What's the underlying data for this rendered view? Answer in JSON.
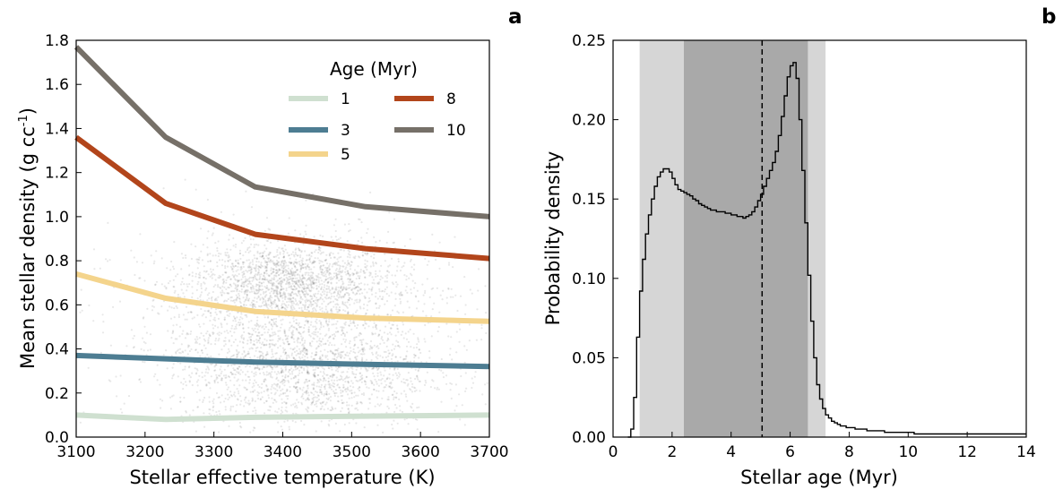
{
  "chart_data": [
    {
      "type": "line",
      "panel_label": "a",
      "xlabel": "Stellar effective temperature (K)",
      "ylabel": "Mean stellar density (g cc",
      "ylabel_sup": "-1",
      "ylabel_close": ")",
      "xlim": [
        3100,
        3700
      ],
      "ylim": [
        0.0,
        1.8
      ],
      "xticks": [
        "3100",
        "3200",
        "3300",
        "3400",
        "3500",
        "3600",
        "3700"
      ],
      "yticks": [
        "0.0",
        "0.2",
        "0.4",
        "0.6",
        "0.8",
        "1.0",
        "1.2",
        "1.4",
        "1.6",
        "1.8"
      ],
      "grid": false,
      "legend": {
        "title": "Age (Myr)",
        "placement": "top-right",
        "entries": [
          "1",
          "3",
          "5",
          "8",
          "10"
        ]
      },
      "x": [
        3100,
        3230,
        3360,
        3520,
        3700
      ],
      "series": [
        {
          "name": "1",
          "color": "#cfe0d0",
          "values": [
            0.1,
            0.08,
            0.09,
            0.095,
            0.1
          ]
        },
        {
          "name": "3",
          "color": "#4d7d92",
          "values": [
            0.37,
            0.355,
            0.34,
            0.33,
            0.32
          ]
        },
        {
          "name": "5",
          "color": "#f4d48c",
          "values": [
            0.74,
            0.63,
            0.57,
            0.54,
            0.525
          ]
        },
        {
          "name": "8",
          "color": "#b2451b",
          "values": [
            1.36,
            1.06,
            0.92,
            0.855,
            0.81
          ]
        },
        {
          "name": "10",
          "color": "#767068",
          "values": [
            1.77,
            1.36,
            1.135,
            1.045,
            1.0
          ]
        }
      ],
      "density_cloud": {
        "note_color": "#000000",
        "clusters": [
          {
            "cx": 3410,
            "cy": 0.7,
            "sx": 75,
            "sy": 0.09,
            "weight": 0.9
          },
          {
            "cx": 3430,
            "cy": 0.3,
            "sx": 95,
            "sy": 0.13,
            "weight": 0.85
          },
          {
            "cx": 3420,
            "cy": 0.5,
            "sx": 130,
            "sy": 0.22,
            "weight": 0.7
          }
        ]
      }
    },
    {
      "type": "area",
      "panel_label": "b",
      "xlabel": "Stellar age (Myr)",
      "ylabel": "Probability density",
      "xlim": [
        0,
        14
      ],
      "ylim": [
        0.0,
        0.25
      ],
      "xticks": [
        "0",
        "2",
        "4",
        "6",
        "8",
        "10",
        "12",
        "14"
      ],
      "yticks": [
        "0.00",
        "0.05",
        "0.10",
        "0.15",
        "0.20",
        "0.25"
      ],
      "grid": false,
      "median": 5.05,
      "interval_outer": [
        0.9,
        7.2
      ],
      "interval_inner": [
        2.4,
        6.6
      ],
      "band_colors": {
        "outer": "#d6d6d6",
        "inner": "#a9a9a9"
      },
      "histogram": {
        "bin_width": 0.1,
        "x_start": 0.5,
        "values": [
          0.0,
          0.005,
          0.025,
          0.063,
          0.092,
          0.112,
          0.128,
          0.14,
          0.15,
          0.158,
          0.164,
          0.167,
          0.169,
          0.169,
          0.167,
          0.163,
          0.159,
          0.156,
          0.155,
          0.154,
          0.153,
          0.152,
          0.15,
          0.149,
          0.147,
          0.146,
          0.145,
          0.144,
          0.143,
          0.143,
          0.142,
          0.142,
          0.142,
          0.141,
          0.141,
          0.14,
          0.14,
          0.139,
          0.139,
          0.138,
          0.139,
          0.14,
          0.142,
          0.145,
          0.149,
          0.153,
          0.158,
          0.163,
          0.168,
          0.173,
          0.18,
          0.19,
          0.202,
          0.215,
          0.227,
          0.234,
          0.236,
          0.226,
          0.2,
          0.168,
          0.135,
          0.102,
          0.073,
          0.05,
          0.033,
          0.024,
          0.018,
          0.014,
          0.012,
          0.01,
          0.009,
          0.008,
          0.007,
          0.007,
          0.006,
          0.006,
          0.006,
          0.005,
          0.005,
          0.005,
          0.005,
          0.004,
          0.004,
          0.004,
          0.004,
          0.004,
          0.004,
          0.003,
          0.003,
          0.003,
          0.003,
          0.003,
          0.003,
          0.003,
          0.003,
          0.003,
          0.003,
          0.002,
          0.002,
          0.002,
          0.002,
          0.002,
          0.002,
          0.002,
          0.002,
          0.002,
          0.002,
          0.002,
          0.002,
          0.002,
          0.002,
          0.002,
          0.002,
          0.002,
          0.002,
          0.002,
          0.002,
          0.002,
          0.002,
          0.002,
          0.002,
          0.002,
          0.002,
          0.002,
          0.002,
          0.002,
          0.002,
          0.002,
          0.002,
          0.002,
          0.002,
          0.002,
          0.002,
          0.002,
          0.002
        ]
      }
    }
  ]
}
